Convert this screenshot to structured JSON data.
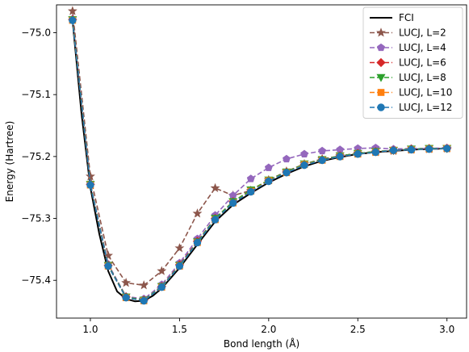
{
  "chart_data": {
    "type": "line",
    "xlabel": "Bond length (Å)",
    "ylabel": "Energy (Hartree)",
    "xlim": [
      0.81,
      3.11
    ],
    "ylim": [
      -75.461,
      -74.955
    ],
    "xticks": [
      1.0,
      1.5,
      2.0,
      2.5,
      3.0
    ],
    "xtick_labels": [
      "1.0",
      "1.5",
      "2.0",
      "2.5",
      "3.0"
    ],
    "yticks": [
      -75.0,
      -75.1,
      -75.2,
      -75.3,
      -75.4
    ],
    "ytick_labels": [
      "−75.0",
      "−75.1",
      "−75.2",
      "−75.3",
      "−75.4"
    ],
    "grid": false,
    "legend_position": "top-right",
    "x": [
      0.9,
      1.0,
      1.1,
      1.2,
      1.3,
      1.4,
      1.5,
      1.6,
      1.7,
      1.8,
      1.9,
      2.0,
      2.1,
      2.2,
      2.3,
      2.4,
      2.5,
      2.6,
      2.7,
      2.8,
      2.9,
      3.0
    ],
    "fci_curve": {
      "name": "FCI",
      "color": "#000000",
      "x": [
        0.9,
        0.95,
        1.0,
        1.05,
        1.1,
        1.15,
        1.2,
        1.25,
        1.3,
        1.35,
        1.4,
        1.5,
        1.6,
        1.7,
        1.8,
        1.9,
        2.0,
        2.1,
        2.2,
        2.3,
        2.4,
        2.5,
        2.6,
        2.7,
        2.8,
        2.9,
        3.0
      ],
      "y": [
        -74.98,
        -75.13,
        -75.25,
        -75.325,
        -75.385,
        -75.418,
        -75.43,
        -75.434,
        -75.433,
        -75.425,
        -75.413,
        -75.38,
        -75.342,
        -75.305,
        -75.278,
        -75.259,
        -75.242,
        -75.228,
        -75.216,
        -75.207,
        -75.201,
        -75.196,
        -75.193,
        -75.191,
        -75.189,
        -75.188,
        -75.187
      ]
    },
    "series": [
      {
        "name": "LUCJ, L=2",
        "color": "#8c564b",
        "marker": "star",
        "y": [
          -74.965,
          -75.232,
          -75.36,
          -75.404,
          -75.408,
          -75.385,
          -75.348,
          -75.292,
          -75.251,
          -75.263,
          -75.255,
          -75.238,
          -75.224,
          -75.212,
          -75.204,
          -75.199,
          -75.195,
          -75.193,
          -75.191,
          -75.189,
          -75.188,
          -75.187
        ]
      },
      {
        "name": "LUCJ, L=4",
        "color": "#9467bd",
        "marker": "pentagon",
        "y": [
          -74.978,
          -75.244,
          -75.374,
          -75.426,
          -75.43,
          -75.407,
          -75.372,
          -75.333,
          -75.295,
          -75.263,
          -75.236,
          -75.218,
          -75.204,
          -75.196,
          -75.191,
          -75.189,
          -75.187,
          -75.186,
          -75.188,
          -75.187,
          -75.187,
          -75.186
        ]
      },
      {
        "name": "LUCJ, L=6",
        "color": "#d62728",
        "marker": "diamond",
        "y": [
          -74.979,
          -75.245,
          -75.376,
          -75.427,
          -75.432,
          -75.41,
          -75.375,
          -75.337,
          -75.3,
          -75.273,
          -75.256,
          -75.239,
          -75.225,
          -75.213,
          -75.205,
          -75.199,
          -75.195,
          -75.192,
          -75.19,
          -75.188,
          -75.187,
          -75.187
        ]
      },
      {
        "name": "LUCJ, L=8",
        "color": "#2ca02c",
        "marker": "triangle-down",
        "y": [
          -74.979,
          -75.245,
          -75.376,
          -75.427,
          -75.432,
          -75.41,
          -75.376,
          -75.338,
          -75.3,
          -75.273,
          -75.254,
          -75.238,
          -75.225,
          -75.212,
          -75.205,
          -75.199,
          -75.195,
          -75.192,
          -75.19,
          -75.188,
          -75.187,
          -75.187
        ]
      },
      {
        "name": "LUCJ, L=10",
        "color": "#ff7f0e",
        "marker": "square",
        "y": [
          -74.98,
          -75.246,
          -75.377,
          -75.428,
          -75.433,
          -75.411,
          -75.377,
          -75.339,
          -75.302,
          -75.275,
          -75.256,
          -75.239,
          -75.226,
          -75.213,
          -75.206,
          -75.2,
          -75.196,
          -75.193,
          -75.19,
          -75.189,
          -75.188,
          -75.187
        ]
      },
      {
        "name": "LUCJ, L=12",
        "color": "#1f77b4",
        "marker": "circle",
        "y": [
          -74.98,
          -75.246,
          -75.377,
          -75.428,
          -75.433,
          -75.411,
          -75.377,
          -75.339,
          -75.302,
          -75.275,
          -75.257,
          -75.24,
          -75.226,
          -75.214,
          -75.206,
          -75.2,
          -75.196,
          -75.193,
          -75.19,
          -75.189,
          -75.188,
          -75.187
        ]
      }
    ]
  }
}
